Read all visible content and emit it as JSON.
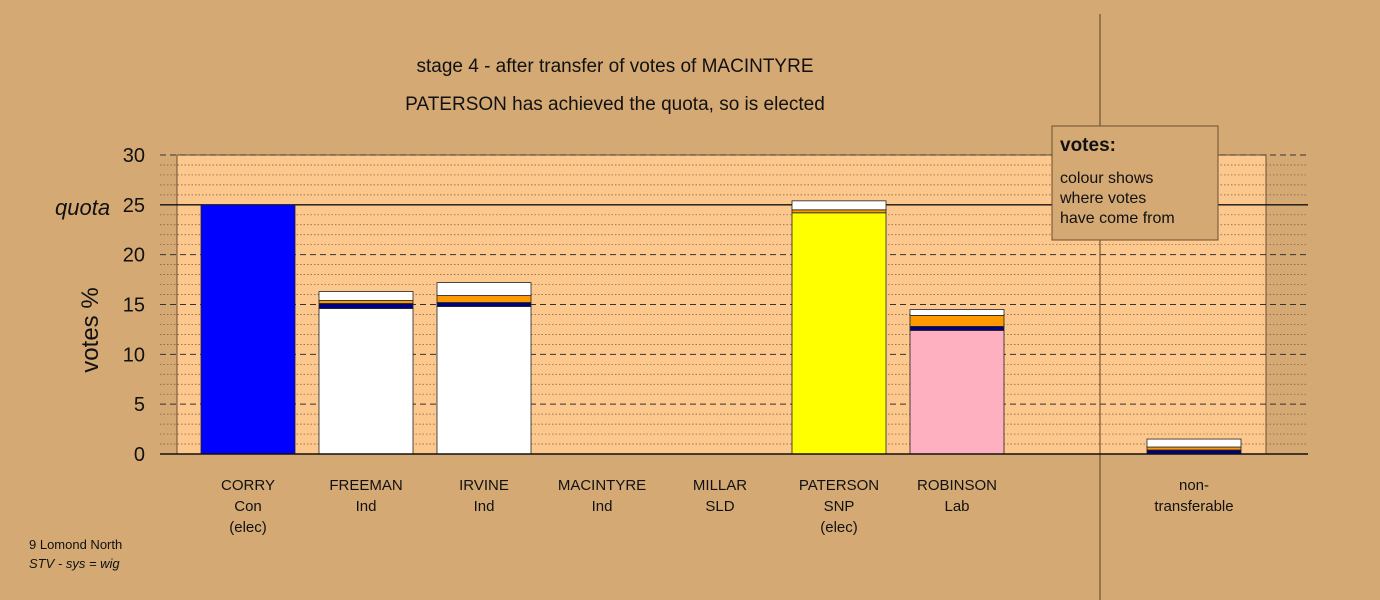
{
  "footer": {
    "line1": "9 Lomond North",
    "line2": "STV - sys = wig"
  },
  "colors": {
    "background": "#d4a974",
    "plot_area": "#fcc88e",
    "Con": "#0000ff",
    "Ind": "#ffffff",
    "SNP": "#ffff00",
    "Lab": "#ffb0c0",
    "transfer_orange": "#ff9900",
    "transfer_navy": "#000080"
  },
  "legend": {
    "title": "votes:",
    "lines": [
      "colour shows",
      "where votes",
      "have come from"
    ]
  },
  "chart_data": {
    "type": "bar",
    "stacked": true,
    "title": "stage 4 - after transfer of votes of MACINTYRE",
    "subtitle": "PATERSON has achieved the quota, so is elected",
    "ylabel": "votes %",
    "ylim": [
      0,
      30
    ],
    "yticks": [
      0,
      5,
      10,
      15,
      20,
      25,
      30
    ],
    "quota": 25,
    "quota_label": "quota",
    "grid": true,
    "legend_position": "top-right",
    "categories": [
      {
        "name": "CORRY",
        "party": "Con",
        "note": "(elec)"
      },
      {
        "name": "FREEMAN",
        "party": "Ind",
        "note": ""
      },
      {
        "name": "IRVINE",
        "party": "Ind",
        "note": ""
      },
      {
        "name": "MACINTYRE",
        "party": "Ind",
        "note": ""
      },
      {
        "name": "MILLAR",
        "party": "SLD",
        "note": ""
      },
      {
        "name": "PATERSON",
        "party": "SNP",
        "note": "(elec)"
      },
      {
        "name": "ROBINSON",
        "party": "Lab",
        "note": ""
      },
      {
        "name": "non-",
        "party": "transferable",
        "note": ""
      }
    ],
    "bars": [
      [
        {
          "value": 25.0,
          "color": "#0000ff"
        }
      ],
      [
        {
          "value": 14.6,
          "color": "#ffffff"
        },
        {
          "value": 0.5,
          "color": "#000080"
        },
        {
          "value": 0.3,
          "color": "#ff9900"
        },
        {
          "value": 0.9,
          "color": "#ffffff"
        }
      ],
      [
        {
          "value": 14.8,
          "color": "#ffffff"
        },
        {
          "value": 0.4,
          "color": "#000080"
        },
        {
          "value": 0.7,
          "color": "#ff9900"
        },
        {
          "value": 1.3,
          "color": "#ffffff"
        }
      ],
      [],
      [],
      [
        {
          "value": 24.2,
          "color": "#ffff00"
        },
        {
          "value": 0.3,
          "color": "#ff9900"
        },
        {
          "value": 0.9,
          "color": "#ffffff"
        }
      ],
      [
        {
          "value": 12.4,
          "color": "#ffb0c0"
        },
        {
          "value": 0.4,
          "color": "#000080"
        },
        {
          "value": 1.1,
          "color": "#ff9900"
        },
        {
          "value": 0.6,
          "color": "#ffffff"
        }
      ],
      [
        {
          "value": 0.4,
          "color": "#000080"
        },
        {
          "value": 0.3,
          "color": "#ff9900"
        },
        {
          "value": 0.8,
          "color": "#ffffff"
        }
      ]
    ]
  }
}
